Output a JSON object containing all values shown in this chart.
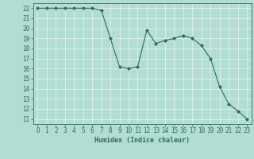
{
  "xlabel": "Humidex (Indice chaleur)",
  "ylabel": "",
  "x": [
    0,
    1,
    2,
    3,
    4,
    5,
    6,
    7,
    8,
    9,
    10,
    11,
    12,
    13,
    14,
    15,
    16,
    17,
    18,
    19,
    20,
    21,
    22,
    23
  ],
  "y": [
    22,
    22,
    22,
    22,
    22,
    22,
    22,
    21.8,
    19.0,
    16.2,
    16.0,
    16.2,
    19.8,
    18.5,
    18.8,
    19.0,
    19.3,
    19.0,
    18.3,
    17.0,
    14.2,
    12.5,
    11.8,
    11.0
  ],
  "line_color": "#2e6b5e",
  "marker": "D",
  "marker_size": 2,
  "background_color": "#b2ddd4",
  "grid_color": "#e0f0ed",
  "ylim": [
    10.5,
    22.5
  ],
  "xlim": [
    -0.5,
    23.5
  ],
  "yticks": [
    11,
    12,
    13,
    14,
    15,
    16,
    17,
    18,
    19,
    20,
    21,
    22
  ],
  "xticks": [
    0,
    1,
    2,
    3,
    4,
    5,
    6,
    7,
    8,
    9,
    10,
    11,
    12,
    13,
    14,
    15,
    16,
    17,
    18,
    19,
    20,
    21,
    22,
    23
  ],
  "label_fontsize": 6,
  "tick_fontsize": 5.5
}
